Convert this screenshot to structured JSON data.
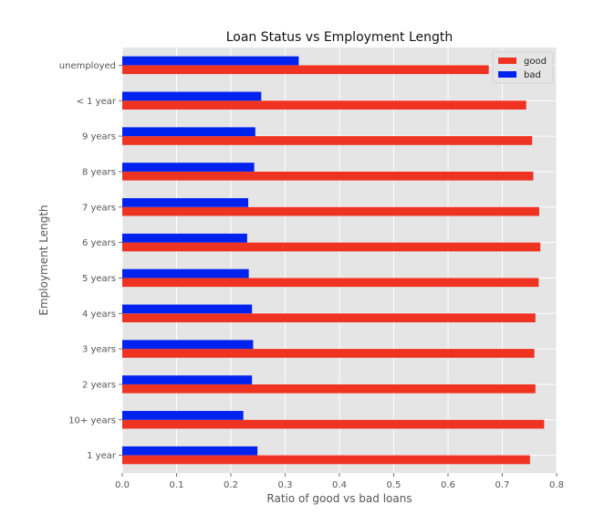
{
  "chart_data": {
    "type": "bar",
    "orientation": "horizontal",
    "title": "Loan Status vs Employment Length",
    "xlabel": "Ratio of good vs bad loans",
    "ylabel": "Employment Length",
    "xlim": [
      0.0,
      0.8
    ],
    "xticks": [
      0.0,
      0.1,
      0.2,
      0.3,
      0.4,
      0.5,
      0.6,
      0.7,
      0.8
    ],
    "xtick_labels": [
      "0.0",
      "0.1",
      "0.2",
      "0.3",
      "0.4",
      "0.5",
      "0.6",
      "0.7",
      "0.8"
    ],
    "grid": true,
    "legend_position": "top-right",
    "categories": [
      "1 year",
      "10+ years",
      "2 years",
      "3 years",
      "4 years",
      "5 years",
      "6 years",
      "7 years",
      "8 years",
      "9 years",
      "< 1 year",
      "unemployed"
    ],
    "series": [
      {
        "name": "good",
        "color": "#ee3322",
        "values": [
          0.751,
          0.777,
          0.761,
          0.759,
          0.761,
          0.767,
          0.77,
          0.768,
          0.757,
          0.755,
          0.744,
          0.675
        ]
      },
      {
        "name": "bad",
        "color": "#0022ee",
        "values": [
          0.249,
          0.223,
          0.239,
          0.241,
          0.239,
          0.233,
          0.23,
          0.232,
          0.243,
          0.245,
          0.256,
          0.325
        ]
      }
    ]
  },
  "style": {
    "plot_background": "#e5e5e5",
    "grid_color": "#ffffff",
    "text_color": "#555555"
  }
}
